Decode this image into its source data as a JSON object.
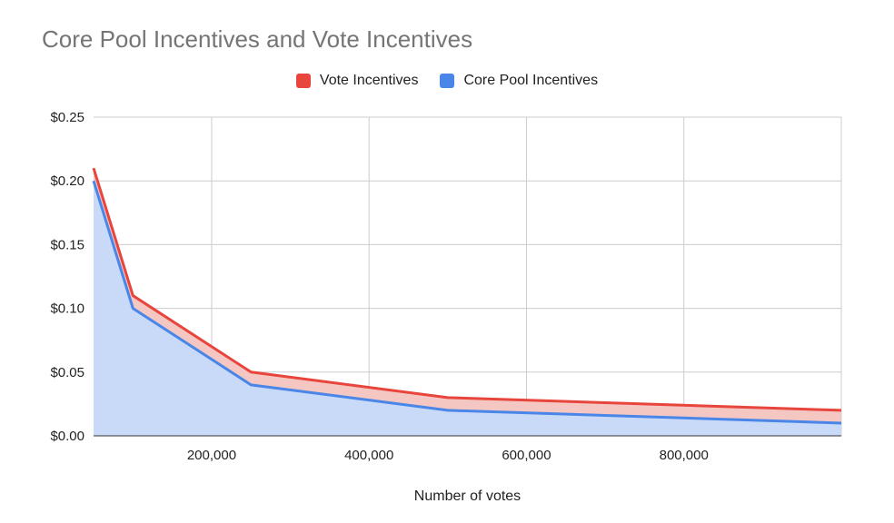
{
  "chart_data": {
    "type": "area",
    "title": "Core Pool Incentives and Vote Incentives",
    "xlabel": "Number of votes",
    "ylabel": "",
    "x": [
      50000,
      100000,
      250000,
      500000,
      1000000
    ],
    "xlim": [
      50000,
      1000000
    ],
    "ylim": [
      0,
      0.25
    ],
    "x_ticks": [
      200000,
      400000,
      600000,
      800000
    ],
    "x_tick_labels": [
      "200,000",
      "400,000",
      "600,000",
      "800,000"
    ],
    "y_ticks": [
      0,
      0.05,
      0.1,
      0.15,
      0.2,
      0.25
    ],
    "y_tick_labels": [
      "$0.00",
      "$0.05",
      "$0.10",
      "$0.15",
      "$0.20",
      "$0.25"
    ],
    "grid": true,
    "stacked": true,
    "legend_position": "top",
    "series": [
      {
        "name": "Core Pool Incentives",
        "values": [
          0.2,
          0.1,
          0.04,
          0.02,
          0.01
        ],
        "color": "#4a86e8",
        "fill": "#c9daf8"
      },
      {
        "name": "Vote Incentives",
        "values": [
          0.01,
          0.01,
          0.01,
          0.01,
          0.01
        ],
        "color": "#e8453c",
        "fill": "#f4c7c3"
      }
    ]
  }
}
